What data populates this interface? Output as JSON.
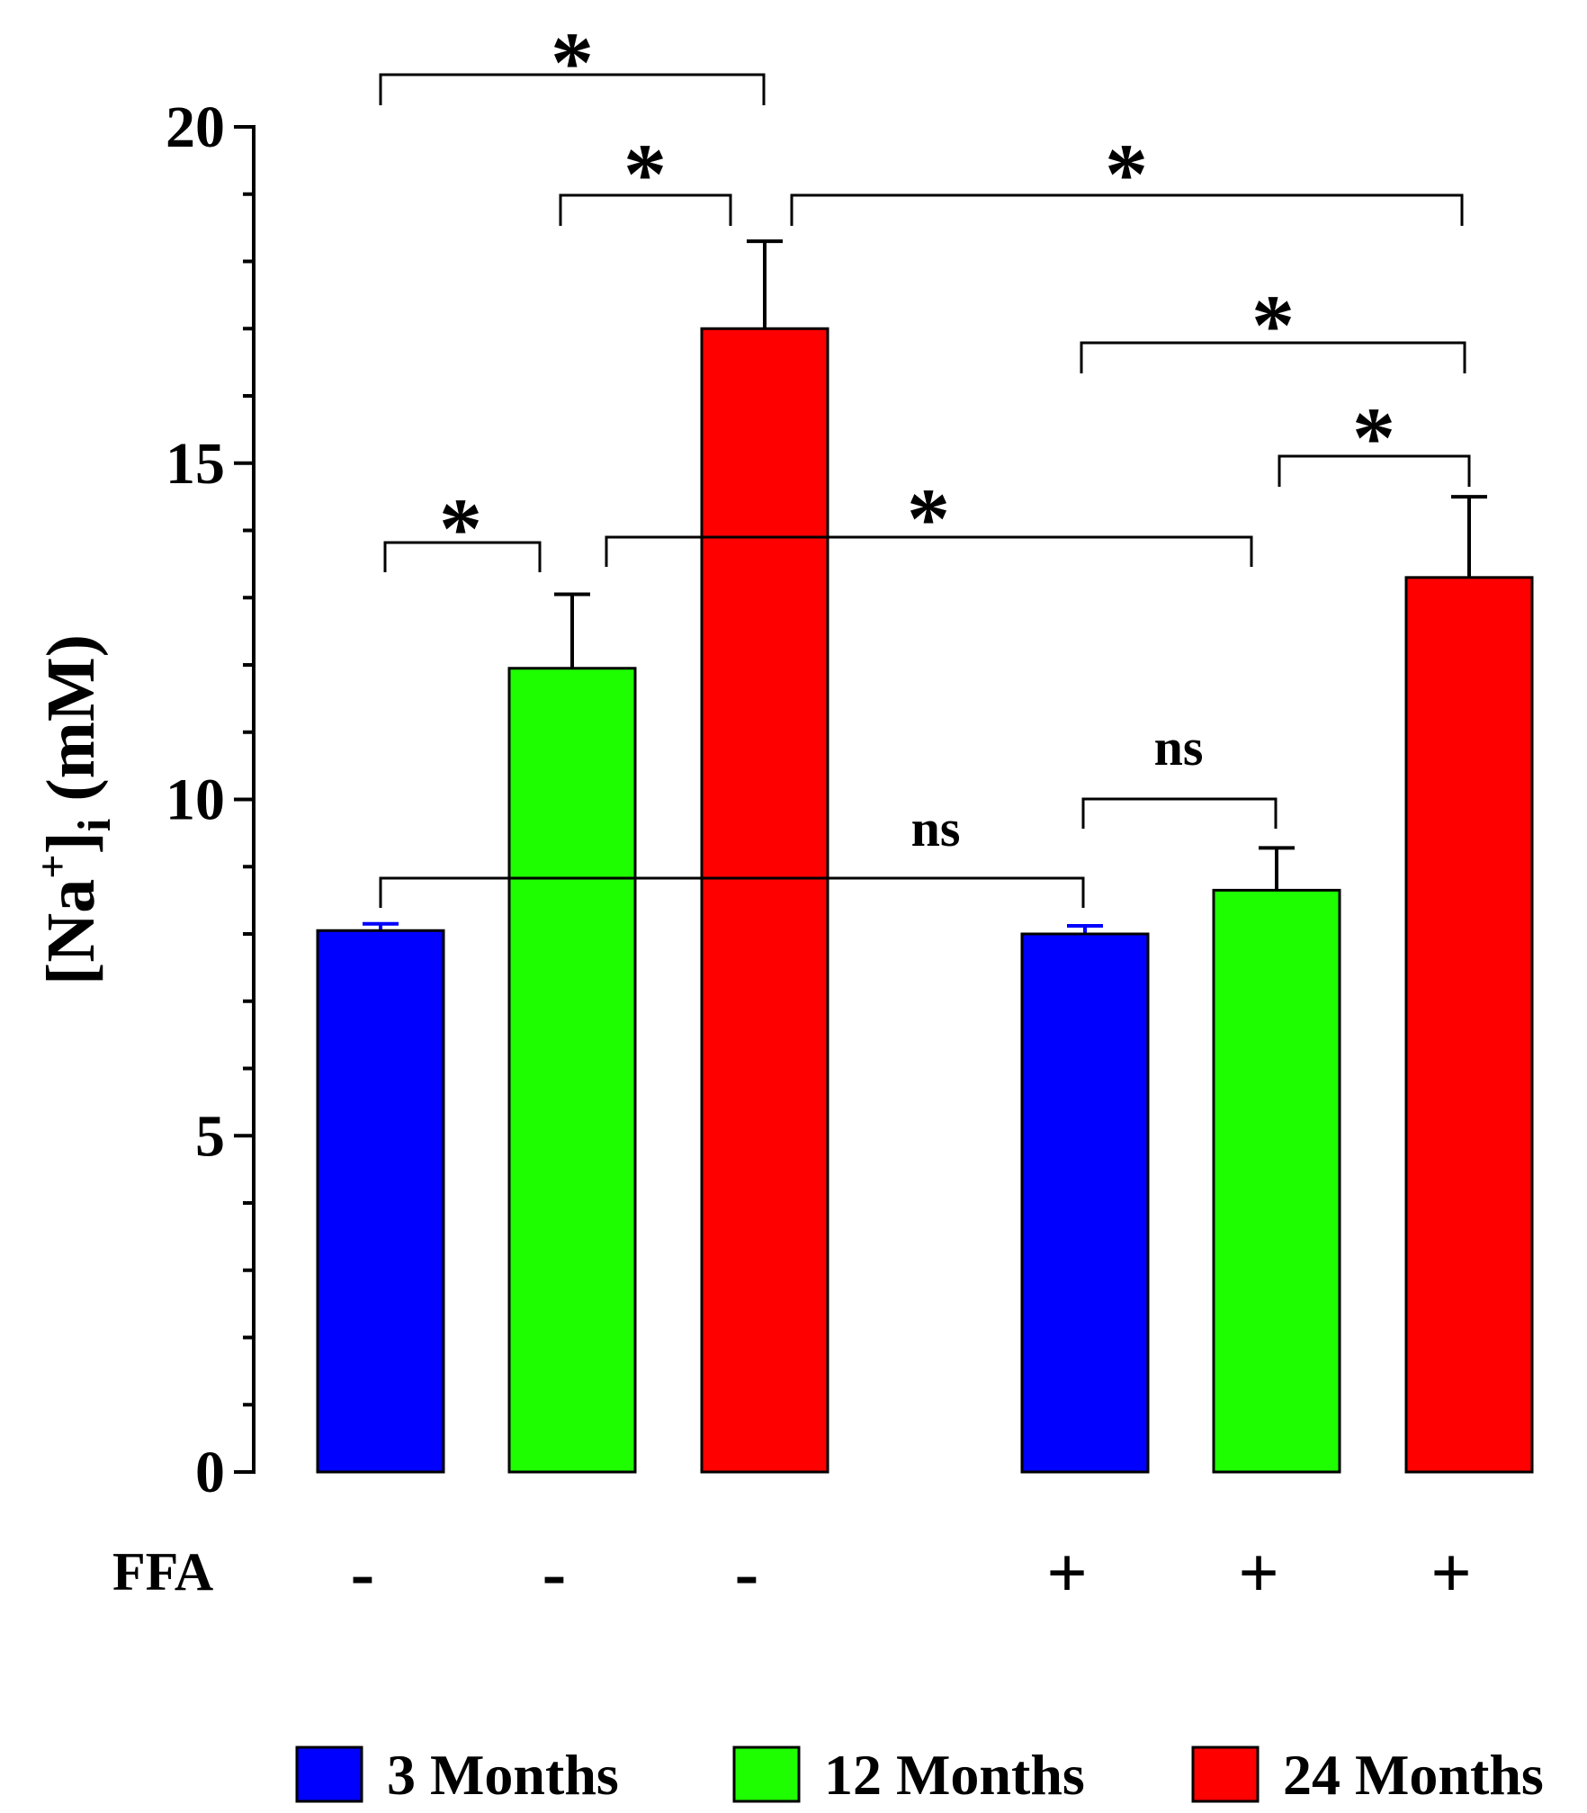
{
  "chart_data": {
    "type": "bar",
    "title": "",
    "ylabel": "[Na+]i (mM)",
    "ylabel_parts": {
      "open": "[Na",
      "sup": "+",
      "close": "]",
      "sub": "i",
      "unit": " (mM)"
    },
    "xlabel": "",
    "ylim": [
      0,
      20
    ],
    "yticks": [
      0,
      5,
      10,
      15,
      20
    ],
    "row_label": "FFA",
    "bars": [
      {
        "group": "3 Months",
        "ffa": "-",
        "value": 8.05,
        "error": 0.1
      },
      {
        "group": "12 Months",
        "ffa": "-",
        "value": 11.95,
        "error": 1.1
      },
      {
        "group": "24 Months",
        "ffa": "-",
        "value": 17.0,
        "error": 1.3
      },
      {
        "group": "3 Months",
        "ffa": "+",
        "value": 8.0,
        "error": 0.12
      },
      {
        "group": "12 Months",
        "ffa": "+",
        "value": 8.65,
        "error": 0.63
      },
      {
        "group": "24 Months",
        "ffa": "+",
        "value": 13.3,
        "error": 1.2
      }
    ],
    "series": [
      {
        "name": "3 Months",
        "color": "#0000ff"
      },
      {
        "name": "12 Months",
        "color": "#1efe00"
      },
      {
        "name": "24 Months",
        "color": "#ff0000"
      }
    ],
    "comparisons": [
      {
        "from": 0,
        "to": 2,
        "label": "*"
      },
      {
        "from": 1,
        "to": 2,
        "label": "*"
      },
      {
        "from": 2,
        "to": 5,
        "label": "*"
      },
      {
        "from": 3,
        "to": 5,
        "label": "*"
      },
      {
        "from": 4,
        "to": 5,
        "label": "*"
      },
      {
        "from": 0,
        "to": 1,
        "label": "*"
      },
      {
        "from": 1,
        "to": 4,
        "label": "*"
      },
      {
        "from": 3,
        "to": 4,
        "label": "ns"
      },
      {
        "from": 0,
        "to": 3,
        "label": "ns"
      }
    ],
    "legend_position": "bottom"
  }
}
